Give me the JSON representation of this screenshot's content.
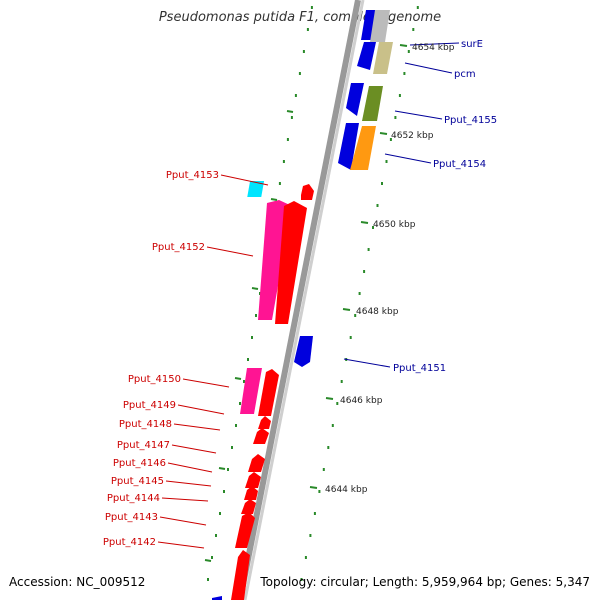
{
  "title": "Pseudomonas putida F1, complete genome",
  "footer": {
    "accession": "Accession: NC_009512",
    "topology": "Topology: circular; Length: 5,959,964 bp; Genes: 5,347"
  },
  "colors": {
    "forward_label": "#cc0000",
    "reverse_label": "#000099",
    "tick": "#2a8a2a",
    "backbone": "#999999"
  },
  "scale_labels": [
    "4654 kbp",
    "4652 kbp",
    "4650 kbp",
    "4648 kbp",
    "4646 kbp",
    "4644 kbp"
  ],
  "forward_genes": [
    {
      "label": "Pput_4153"
    },
    {
      "label": "Pput_4152"
    },
    {
      "label": "Pput_4150"
    },
    {
      "label": "Pput_4149"
    },
    {
      "label": "Pput_4148"
    },
    {
      "label": "Pput_4147"
    },
    {
      "label": "Pput_4146"
    },
    {
      "label": "Pput_4145"
    },
    {
      "label": "Pput_4144"
    },
    {
      "label": "Pput_4143"
    },
    {
      "label": "Pput_4142"
    }
  ],
  "reverse_genes": [
    {
      "label": "surE"
    },
    {
      "label": "pcm"
    },
    {
      "label": "Pput_4155"
    },
    {
      "label": "Pput_4154"
    },
    {
      "label": "Pput_4151"
    }
  ]
}
